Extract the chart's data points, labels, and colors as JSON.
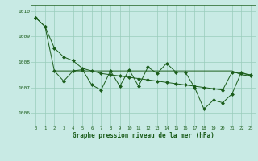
{
  "title": "Graphe pression niveau de la mer (hPa)",
  "bg_color": "#c8eae4",
  "plot_bg_color": "#c8eae4",
  "line_color": "#1a5c1a",
  "grid_color": "#99ccbb",
  "text_color": "#1a5c1a",
  "ylim": [
    1005.5,
    1010.25
  ],
  "yticks": [
    1006,
    1007,
    1008,
    1009,
    1010
  ],
  "xticks": [
    0,
    1,
    2,
    3,
    4,
    5,
    6,
    7,
    8,
    9,
    10,
    11,
    12,
    13,
    14,
    15,
    16,
    17,
    18,
    19,
    20,
    21,
    22,
    23
  ],
  "series1_y": [
    1009.75,
    1009.4,
    1008.55,
    1008.2,
    1008.05,
    1007.75,
    1007.65,
    1007.55,
    1007.5,
    1007.45,
    1007.4,
    1007.35,
    1007.3,
    1007.25,
    1007.2,
    1007.15,
    1007.1,
    1007.05,
    1007.0,
    1006.95,
    1006.9,
    1007.6,
    1007.55,
    1007.5
  ],
  "series2_y": [
    1009.75,
    1009.4,
    1007.65,
    1007.25,
    1007.65,
    1007.7,
    1007.1,
    1006.9,
    1007.65,
    1007.05,
    1007.7,
    1007.05,
    1007.8,
    1007.55,
    1007.95,
    1007.6,
    1007.6,
    1007.0,
    1006.15,
    1006.5,
    1006.4,
    1006.75,
    1007.6,
    1007.45
  ],
  "series3_start_x": 2,
  "series3_y": [
    1007.65,
    1007.65,
    1007.65,
    1007.65,
    1007.65,
    1007.65,
    1007.65,
    1007.65,
    1007.65,
    1007.65,
    1007.65,
    1007.65,
    1007.65,
    1007.65,
    1007.65,
    1007.65,
    1007.65,
    1007.65,
    1007.65,
    1007.65,
    1007.5,
    1007.45
  ]
}
